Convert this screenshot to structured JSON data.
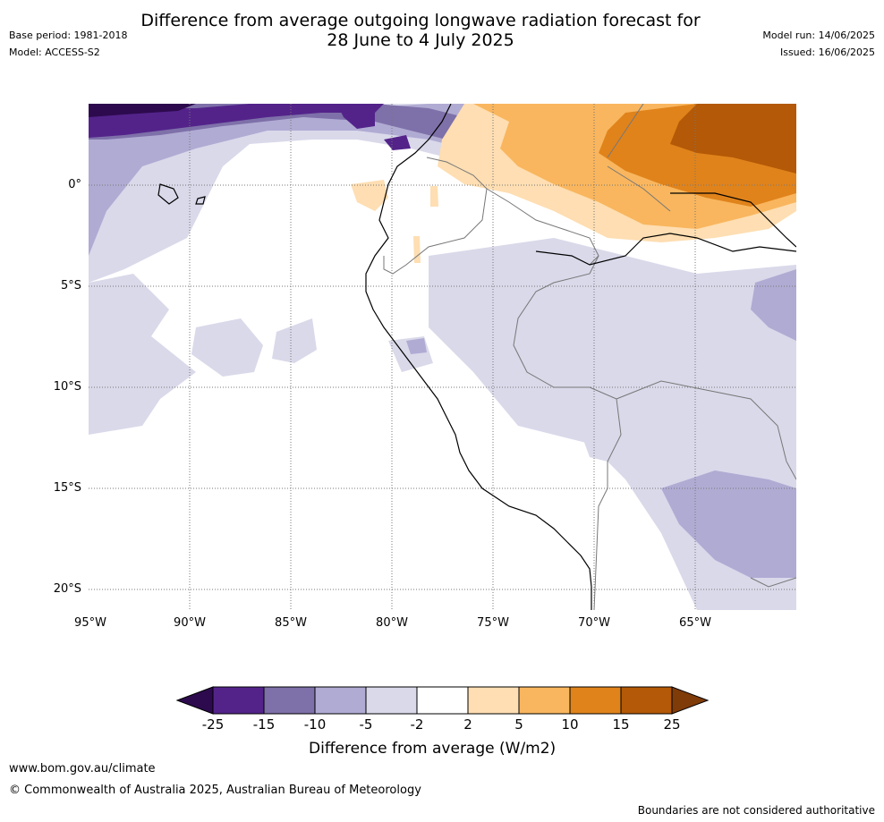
{
  "header": {
    "title_line1": "Difference from average outgoing longwave radiation forecast for",
    "title_line2": "28 June to 4 July 2025",
    "base_period": "Base period: 1981-2018",
    "model": "Model: ACCESS-S2",
    "model_run": "Model run: 14/06/2025",
    "issued": "Issued: 16/06/2025"
  },
  "map": {
    "latitude_labels": [
      "0°",
      "5°S",
      "10°S",
      "15°S",
      "20°S"
    ],
    "longitude_labels": [
      "95°W",
      "90°W",
      "85°W",
      "80°W",
      "75°W",
      "70°W",
      "65°W"
    ]
  },
  "colorbar": {
    "title": "Difference from average (W/m2)",
    "tick_labels": [
      "-25",
      "-15",
      "-10",
      "-5",
      "-2",
      "2",
      "5",
      "10",
      "15",
      "25"
    ],
    "colors": [
      "#2d0a4e",
      "#53238a",
      "#7e70a9",
      "#b0abd3",
      "#d9d9ea",
      "#ffffff",
      "#fedeb2",
      "#f9b65e",
      "#e0831b",
      "#b35907",
      "#7f3b08"
    ]
  },
  "footer": {
    "website": "www.bom.gov.au/climate",
    "copyright": "© Commonwealth of Australia 2025, Australian Bureau of Meteorology",
    "disclaimer": "Boundaries are not considered authoritative"
  }
}
